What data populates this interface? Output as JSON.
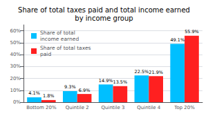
{
  "chart_data": {
    "type": "bar",
    "title": "Share of total taxes paid and total income earned\nby income group",
    "categories": [
      "Bottom 20%",
      "Quintile 2",
      "Quintile 3",
      "Quintile 4",
      "Top 20%"
    ],
    "series": [
      {
        "name": "Share of total\nincome earned",
        "color": "#00bfff",
        "values": [
          4.1,
          9.3,
          14.9,
          22.5,
          49.1
        ],
        "value_labels": [
          "4.1%",
          "9.3%",
          "14.9%",
          "22.5%",
          "49.1%"
        ]
      },
      {
        "name": "Share of total taxes\npaid",
        "color": "#ff2020",
        "values": [
          1.8,
          6.9,
          13.5,
          21.9,
          55.9
        ],
        "value_labels": [
          "1.8%",
          "6.9%",
          "13.5%",
          "21.9%",
          "55.9%"
        ]
      }
    ],
    "ylim": [
      0,
      65
    ],
    "yticks": [
      {
        "value": 0,
        "label": "0%"
      },
      {
        "value": 10,
        "label": "10%"
      },
      {
        "value": 20,
        "label": "20%"
      },
      {
        "value": 30,
        "label": "30%"
      },
      {
        "value": 40,
        "label": "40%"
      },
      {
        "value": 50,
        "label": "50%"
      },
      {
        "value": 60,
        "label": "60%"
      }
    ],
    "grid": true,
    "legend": "upper left",
    "data_labels": true
  }
}
